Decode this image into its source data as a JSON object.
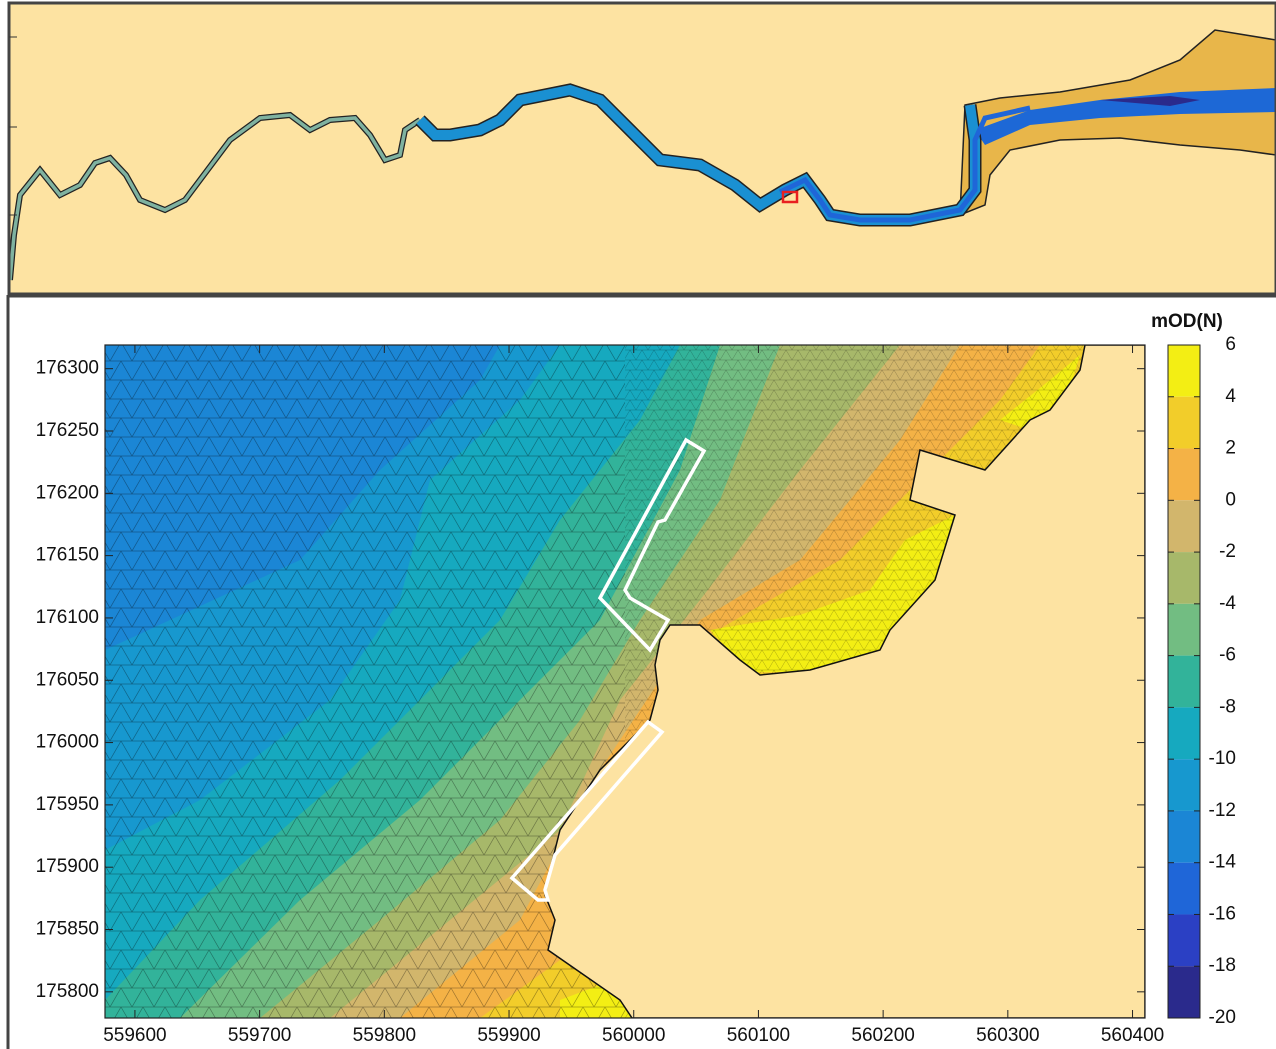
{
  "map": {
    "xlim": [
      559576,
      560410
    ],
    "ylim": [
      175779,
      176319
    ],
    "xticks": [
      559600,
      559700,
      559800,
      559900,
      560000,
      560100,
      560200,
      560300,
      560400
    ],
    "yticks": [
      175800,
      175850,
      175900,
      175950,
      176000,
      176050,
      176100,
      176150,
      176200,
      176250,
      176300
    ],
    "colorbar": {
      "label": "mOD(N)",
      "clim": [
        -20,
        6
      ],
      "ticks": [
        6,
        4,
        2,
        0,
        -2,
        -4,
        -6,
        -8,
        -10,
        -12,
        -14,
        -16,
        -18,
        -20
      ],
      "colors": [
        "#f3ee14",
        "#f2cd2a",
        "#f4b246",
        "#d2b66c",
        "#a7b86a",
        "#72bd82",
        "#32b39a",
        "#16a9bf",
        "#1798cf",
        "#1b86d5",
        "#1f66d8",
        "#2b40c4",
        "#2a2a8c"
      ]
    }
  }
}
